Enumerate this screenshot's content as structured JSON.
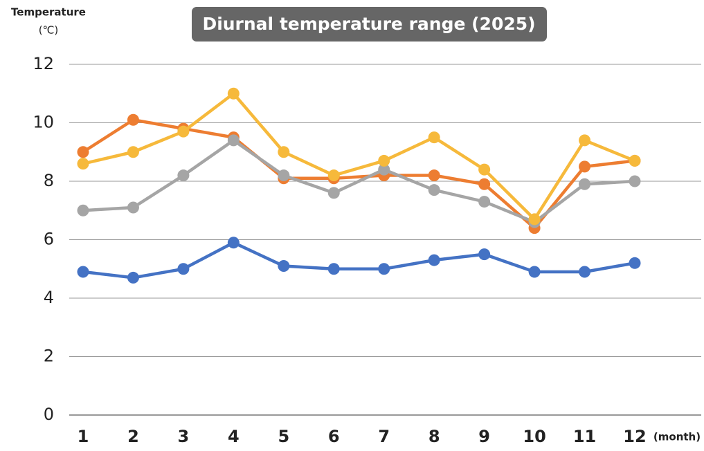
{
  "chart_data": {
    "type": "line",
    "title": "Diurnal temperature range (2025)",
    "y_label": "Temperature",
    "y_unit": "(℃)",
    "x_unit": "(month)",
    "categories": [
      "1",
      "2",
      "3",
      "4",
      "5",
      "6",
      "7",
      "8",
      "9",
      "10",
      "11",
      "12"
    ],
    "series": [
      {
        "color": "#4472c4",
        "values": [
          4.9,
          4.7,
          5.0,
          5.9,
          5.1,
          5.0,
          5.0,
          5.3,
          5.5,
          4.9,
          4.9,
          5.2
        ]
      },
      {
        "color": "#ed7d31",
        "values": [
          9.0,
          10.1,
          9.8,
          9.5,
          8.1,
          8.1,
          8.2,
          8.2,
          7.9,
          6.4,
          8.5,
          8.7
        ]
      },
      {
        "color": "#a5a5a5",
        "values": [
          7.0,
          7.1,
          8.2,
          9.4,
          8.2,
          7.6,
          8.4,
          7.7,
          7.3,
          6.6,
          7.9,
          8.0
        ]
      },
      {
        "color": "#f6b93b",
        "values": [
          8.6,
          9.0,
          9.7,
          11.0,
          9.0,
          8.2,
          8.7,
          9.5,
          8.4,
          6.7,
          9.4,
          8.7
        ]
      }
    ],
    "ylim": [
      0,
      12
    ],
    "yticks": [
      0,
      2,
      4,
      6,
      8,
      10,
      12
    ],
    "grid": true
  }
}
